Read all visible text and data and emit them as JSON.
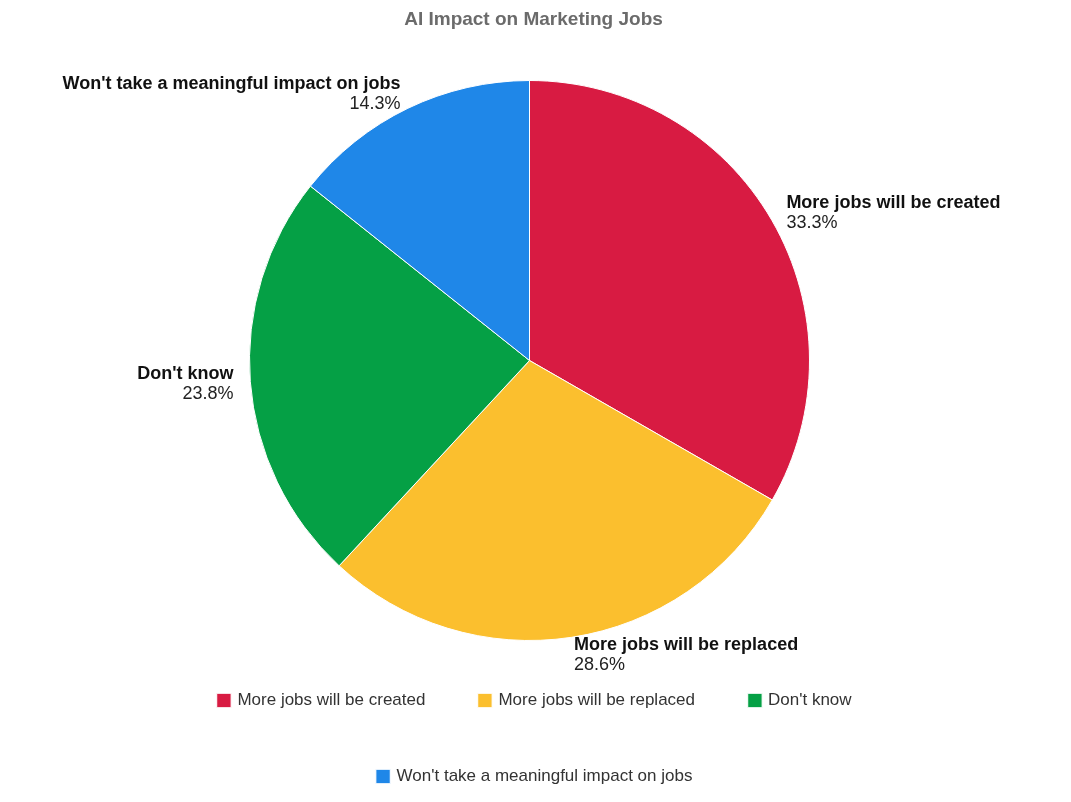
{
  "chart_data": {
    "type": "pie",
    "title": "AI Impact on Marketing Jobs",
    "categories": [
      "More jobs will be created",
      "More jobs will be replaced",
      "Don't know",
      "Won't take a meaningful impact on jobs"
    ],
    "values": [
      33.3,
      28.6,
      23.8,
      14.3
    ],
    "value_labels": [
      "33.3%",
      "28.6%",
      "23.8%",
      "14.3%"
    ],
    "colors": [
      "#d81b42",
      "#fbbf2e",
      "#05a045",
      "#1f87e8"
    ],
    "legend": "bottom"
  }
}
